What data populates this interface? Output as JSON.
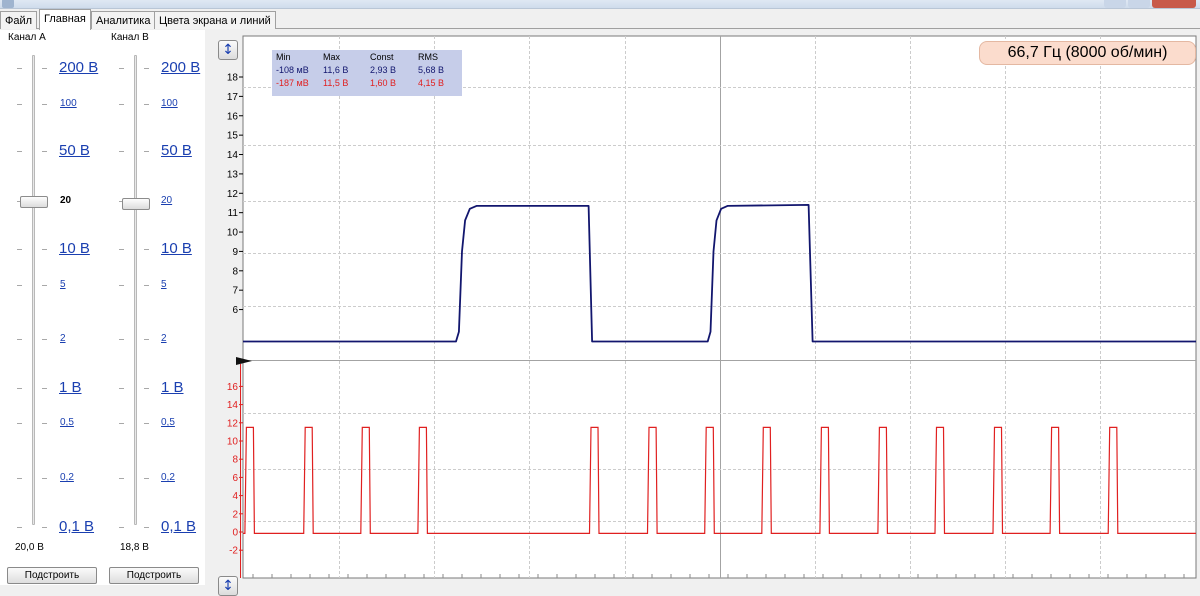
{
  "tabs": [
    {
      "label": "Файл"
    },
    {
      "label": "Главная"
    },
    {
      "label": "Аналитика"
    },
    {
      "label": "Цвета экрана и линий"
    }
  ],
  "channels": [
    {
      "label": "Канал А",
      "value": "20,0 В",
      "adjust_label": "Подстроить",
      "selected_scale": "20",
      "scales": [
        "200 В",
        "100",
        "50 В",
        "20",
        "10 В",
        "5",
        "2",
        "1 В",
        "0,5",
        "0,2",
        "0,1 В"
      ]
    },
    {
      "label": "Канал В",
      "value": "18,8 В",
      "adjust_label": "Подстроить",
      "selected_scale": "20",
      "scales": [
        "200 В",
        "100",
        "50 В",
        "20",
        "10 В",
        "5",
        "2",
        "1 В",
        "0,5",
        "0,2",
        "0,1 В"
      ]
    }
  ],
  "scale_buttons": {
    "top_icon": "vertical-arrows-icon",
    "bottom_icon": "vertical-arrows-icon"
  },
  "stats": {
    "headers": [
      "Min",
      "Max",
      "Const",
      "RMS"
    ],
    "rows": [
      {
        "values": [
          "-108 мВ",
          "11,6 В",
          "2,93 В",
          "5,68 В"
        ],
        "color": "#12166e"
      },
      {
        "values": [
          "-187 мВ",
          "11,5 В",
          "1,60 В",
          "4,15 В"
        ],
        "color": "#e02020"
      }
    ]
  },
  "frequency": "66,7 Гц (8000 об/мин)",
  "chart_data": {
    "type": "line",
    "grid": true,
    "axes": [
      {
        "channel": "A",
        "color": "#12166e",
        "ticks": [
          6,
          7,
          8,
          9,
          10,
          11,
          12,
          13,
          14,
          15,
          16,
          17,
          18
        ],
        "range": [
          4,
          19
        ]
      },
      {
        "channel": "B",
        "color": "#e02020",
        "ticks": [
          -2,
          0,
          2,
          4,
          6,
          8,
          10,
          12,
          14,
          16
        ],
        "range": [
          -3,
          20
        ]
      }
    ],
    "time_range": [
      0,
      1
    ],
    "series": [
      {
        "channel": "A",
        "color": "#12166e",
        "points": [
          [
            0,
            4.35
          ],
          [
            0.2235,
            4.35
          ],
          [
            0.2266,
            4.85
          ],
          [
            0.2298,
            9.0
          ],
          [
            0.2331,
            10.6
          ],
          [
            0.238,
            11.2
          ],
          [
            0.245,
            11.35
          ],
          [
            0.3626,
            11.35
          ],
          [
            0.3663,
            4.35
          ],
          [
            0.4876,
            4.35
          ],
          [
            0.4906,
            4.85
          ],
          [
            0.4937,
            9.0
          ],
          [
            0.4968,
            10.6
          ],
          [
            0.5017,
            11.2
          ],
          [
            0.5084,
            11.35
          ],
          [
            0.5935,
            11.4
          ],
          [
            0.5977,
            4.35
          ],
          [
            1,
            4.35
          ]
        ]
      },
      {
        "channel": "B",
        "color": "#e02020",
        "pulses": [
          [
            0.002,
            0.012
          ],
          [
            0.0637,
            0.0737
          ],
          [
            0.1236,
            0.1336
          ],
          [
            0.1835,
            0.1935
          ],
          [
            0.3636,
            0.3736
          ],
          [
            0.4245,
            0.4345
          ],
          [
            0.4845,
            0.4945
          ],
          [
            0.5444,
            0.5544
          ],
          [
            0.6053,
            0.6153
          ],
          [
            0.6662,
            0.6762
          ],
          [
            0.7261,
            0.7361
          ],
          [
            0.787,
            0.797
          ],
          [
            0.8469,
            0.8569
          ],
          [
            0.9079,
            0.9179
          ]
        ],
        "high": 11.5,
        "low": -0.15
      }
    ]
  }
}
